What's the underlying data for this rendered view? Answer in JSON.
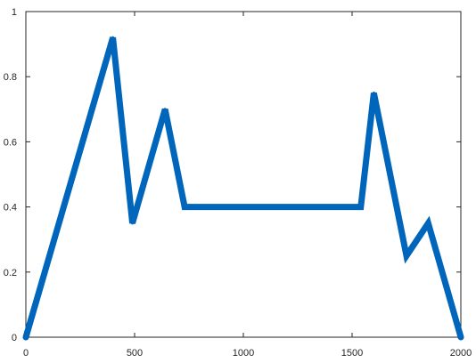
{
  "chart_data": {
    "type": "line",
    "title": "",
    "xlabel": "",
    "ylabel": "",
    "xlim": [
      0,
      2000
    ],
    "ylim": [
      0,
      1
    ],
    "x_ticks": [
      0,
      500,
      1000,
      1500,
      2000
    ],
    "y_ticks": [
      0,
      0.2,
      0.4,
      0.6,
      0.8,
      1
    ],
    "x_tick_labels": [
      "0",
      "500",
      "1000",
      "1500",
      "2000"
    ],
    "y_tick_labels": [
      "0",
      "0.2",
      "0.4",
      "0.6",
      "0.8",
      "1"
    ],
    "grid": false,
    "series": [
      {
        "color": "#0066bb",
        "x": [
          0,
          400,
          490,
          640,
          730,
          1540,
          1600,
          1750,
          1850,
          2000
        ],
        "y": [
          0,
          0.92,
          0.35,
          0.7,
          0.4,
          0.4,
          0.75,
          0.25,
          0.35,
          0
        ]
      }
    ]
  }
}
